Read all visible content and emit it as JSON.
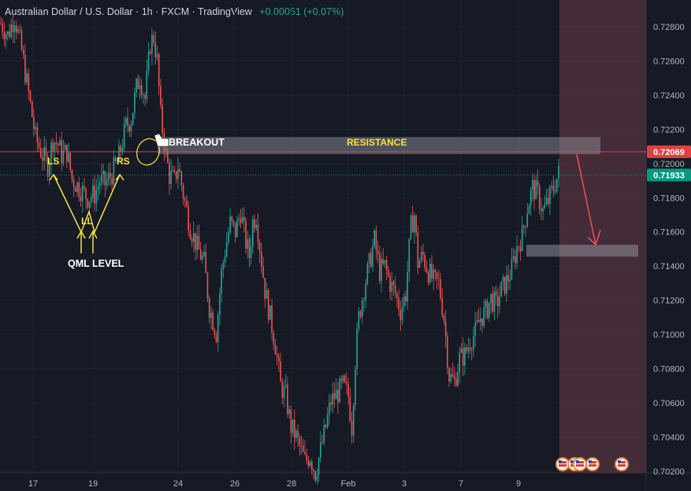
{
  "header": {
    "symbol_name": "Australian Dollar / U.S. Dollar",
    "interval": "1h",
    "exchange": "FXCM",
    "platform": "TradingView",
    "change": "+0.00051 (+0.07%)"
  },
  "colors": {
    "background": "#161a25",
    "up": "#26a69a",
    "down": "#ef5350",
    "annotation": "#f7e23a",
    "resistance_line": "#e0403f",
    "projection_zone": "#6b3a48"
  },
  "chart_data": {
    "type": "candlestick",
    "ylim": [
      0.7019,
      0.7292
    ],
    "y_ticks": [
      "0.72800",
      "0.72600",
      "0.72400",
      "0.72200",
      "0.72000",
      "0.71800",
      "0.71600",
      "0.71400",
      "0.71200",
      "0.71000",
      "0.70800",
      "0.70600",
      "0.70400",
      "0.70200"
    ],
    "x_ticks": [
      "17",
      "19",
      "24",
      "26",
      "28",
      "Feb",
      "3",
      "7",
      "9"
    ],
    "price_levels": [
      {
        "label": "0.72069",
        "value": 0.72069,
        "color": "#e0403f"
      },
      {
        "label": "0.71933",
        "value": 0.71933,
        "color": "#089981"
      }
    ],
    "path_points": [
      [
        0,
        0.7282
      ],
      [
        4,
        0.7275
      ],
      [
        8,
        0.7286
      ],
      [
        12,
        0.7266
      ],
      [
        16,
        0.7241
      ],
      [
        20,
        0.7215
      ],
      [
        24,
        0.7205
      ],
      [
        27,
        0.7199
      ],
      [
        30,
        0.7214
      ],
      [
        33,
        0.7211
      ],
      [
        35,
        0.7205
      ],
      [
        38,
        0.7207
      ],
      [
        41,
        0.7191
      ],
      [
        45,
        0.7186
      ],
      [
        50,
        0.718
      ],
      [
        54,
        0.7182
      ],
      [
        57,
        0.719
      ],
      [
        60,
        0.7188
      ],
      [
        64,
        0.7194
      ],
      [
        68,
        0.7204
      ],
      [
        72,
        0.7222
      ],
      [
        75,
        0.7226
      ],
      [
        78,
        0.7244
      ],
      [
        80,
        0.7251
      ],
      [
        83,
        0.7238
      ],
      [
        86,
        0.727
      ],
      [
        88,
        0.7274
      ],
      [
        90,
        0.726
      ],
      [
        92,
        0.7228
      ],
      [
        95,
        0.7205
      ],
      [
        97,
        0.7193
      ],
      [
        100,
        0.719
      ],
      [
        102,
        0.7199
      ],
      [
        105,
        0.7182
      ],
      [
        109,
        0.7163
      ],
      [
        113,
        0.7151
      ],
      [
        117,
        0.7142
      ],
      [
        120,
        0.7116
      ],
      [
        124,
        0.7101
      ],
      [
        127,
        0.7136
      ],
      [
        129,
        0.7149
      ],
      [
        132,
        0.7165
      ],
      [
        135,
        0.716
      ],
      [
        138,
        0.7172
      ],
      [
        141,
        0.7154
      ],
      [
        143,
        0.7146
      ],
      [
        145,
        0.7166
      ],
      [
        147,
        0.717
      ],
      [
        149,
        0.7152
      ],
      [
        152,
        0.7126
      ],
      [
        155,
        0.711
      ],
      [
        158,
        0.7094
      ],
      [
        161,
        0.707
      ],
      [
        164,
        0.7064
      ],
      [
        167,
        0.7046
      ],
      [
        170,
        0.704
      ],
      [
        172,
        0.7034
      ],
      [
        175,
        0.7026
      ],
      [
        178,
        0.7029
      ],
      [
        181,
        0.7019
      ],
      [
        184,
        0.7032
      ],
      [
        187,
        0.7046
      ],
      [
        190,
        0.7061
      ],
      [
        194,
        0.7066
      ],
      [
        197,
        0.707
      ],
      [
        200,
        0.7064
      ],
      [
        202,
        0.7046
      ],
      [
        204,
        0.7085
      ],
      [
        206,
        0.711
      ],
      [
        209,
        0.7127
      ],
      [
        212,
        0.7141
      ],
      [
        215,
        0.7155
      ],
      [
        218,
        0.7137
      ],
      [
        221,
        0.714
      ],
      [
        224,
        0.713
      ],
      [
        227,
        0.7124
      ],
      [
        230,
        0.7114
      ],
      [
        233,
        0.7124
      ],
      [
        236,
        0.7163
      ],
      [
        238,
        0.717
      ],
      [
        240,
        0.7142
      ],
      [
        243,
        0.7146
      ],
      [
        246,
        0.7137
      ],
      [
        249,
        0.7131
      ],
      [
        252,
        0.713
      ],
      [
        255,
        0.711
      ],
      [
        258,
        0.7076
      ],
      [
        261,
        0.7072
      ],
      [
        264,
        0.7086
      ],
      [
        267,
        0.7088
      ],
      [
        270,
        0.7096
      ],
      [
        273,
        0.7101
      ],
      [
        276,
        0.711
      ],
      [
        279,
        0.7113
      ],
      [
        282,
        0.7121
      ],
      [
        285,
        0.7117
      ],
      [
        288,
        0.7126
      ],
      [
        291,
        0.7131
      ],
      [
        294,
        0.7138
      ],
      [
        297,
        0.7151
      ],
      [
        300,
        0.7158
      ],
      [
        303,
        0.7174
      ],
      [
        306,
        0.7186
      ],
      [
        309,
        0.7182
      ],
      [
        312,
        0.7172
      ],
      [
        315,
        0.7178
      ],
      [
        318,
        0.7186
      ],
      [
        321,
        0.7194
      ]
    ],
    "resistance_zone": {
      "top": 0.72155,
      "bottom": 0.72055
    },
    "target_zone": {
      "top": 0.71525,
      "bottom": 0.71455
    }
  },
  "annotations": {
    "ls": "LS",
    "rs": "RS",
    "ll": "LL",
    "qml": "QML LEVEL",
    "breakout": "BREAKOUT",
    "resistance": "RESISTANCE"
  }
}
